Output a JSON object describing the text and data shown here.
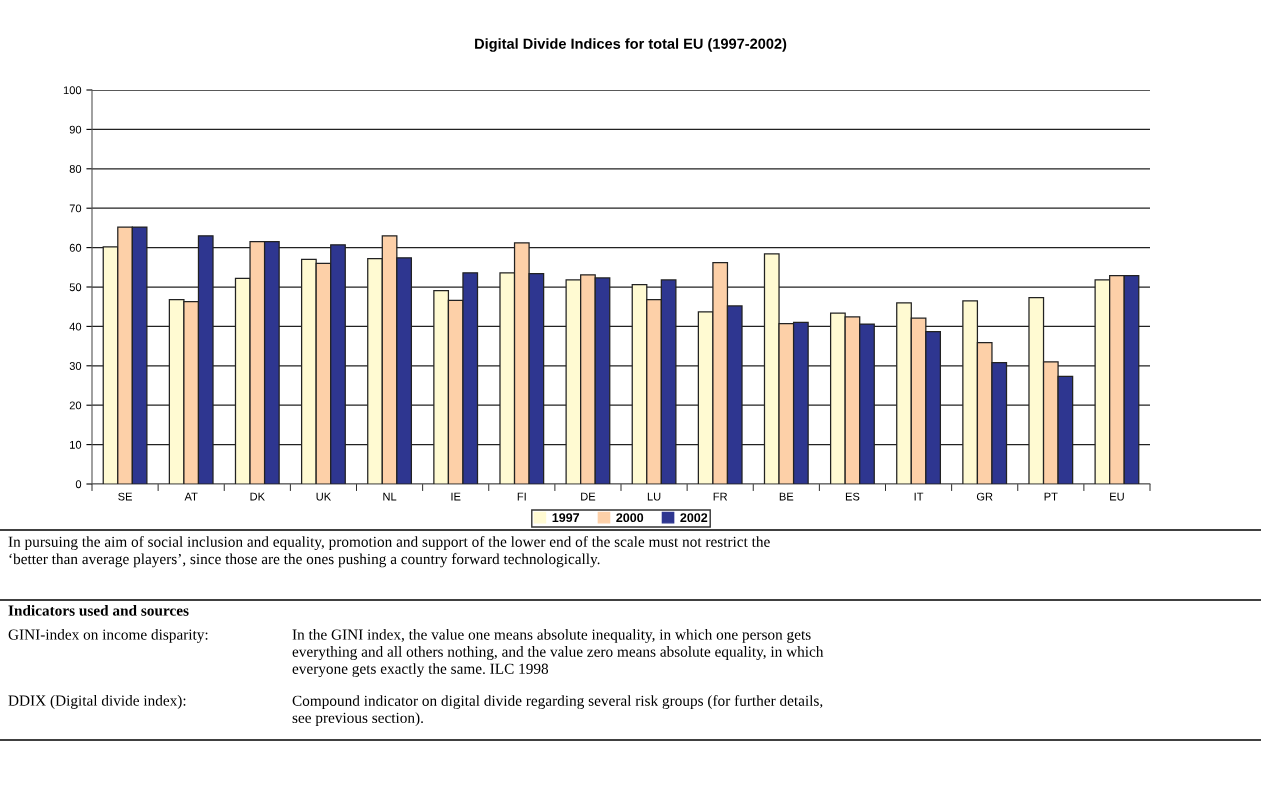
{
  "chart_data": {
    "type": "bar",
    "title": "Digital Divide Indices for total EU (1997-2002)",
    "categories": [
      "SE",
      "AT",
      "DK",
      "UK",
      "NL",
      "IE",
      "FI",
      "DE",
      "LU",
      "FR",
      "BE",
      "ES",
      "IT",
      "GR",
      "PT",
      "EU"
    ],
    "series": [
      {
        "name": "1997",
        "color": "#fffad2",
        "values": [
          60.2,
          46.8,
          52.2,
          57.0,
          57.2,
          49.1,
          53.6,
          51.8,
          50.6,
          43.7,
          58.4,
          43.4,
          46.0,
          46.5,
          47.3,
          51.8
        ]
      },
      {
        "name": "2000",
        "color": "#fdd0a8",
        "values": [
          65.2,
          46.3,
          61.5,
          56.0,
          63.0,
          46.6,
          61.2,
          53.1,
          46.8,
          56.2,
          40.7,
          42.4,
          42.1,
          35.9,
          31.0,
          52.9
        ]
      },
      {
        "name": "2002",
        "color": "#2e3690",
        "values": [
          65.2,
          63.0,
          61.5,
          60.7,
          57.4,
          53.6,
          53.4,
          52.3,
          51.8,
          45.2,
          41.0,
          40.6,
          38.7,
          30.8,
          27.3,
          52.9
        ]
      }
    ],
    "ylim": [
      0,
      100
    ],
    "yticks": [
      0,
      10,
      20,
      30,
      40,
      50,
      60,
      70,
      80,
      90,
      100
    ],
    "grid": "y",
    "legend": "bottom",
    "annotations": [
      "In pursuing the aim of social inclusion and equality, promotion and support of the lower end of the scale must not restrict the\n‘better than average players’, since those are the ones pushing a country forward technologically.",
      "Indicators used and sources",
      "GINI-index on income disparity:",
      "In the GINI index, the value one means absolute inequality, in which one person gets\neverything and all others nothing, and the value zero means absolute equality, in which\neveryone gets exactly the same. ILC 1998",
      "DDIX (Digital divide index):",
      "Compound indicator on digital divide regarding several risk groups (for further details,\nsee previous section)."
    ]
  }
}
